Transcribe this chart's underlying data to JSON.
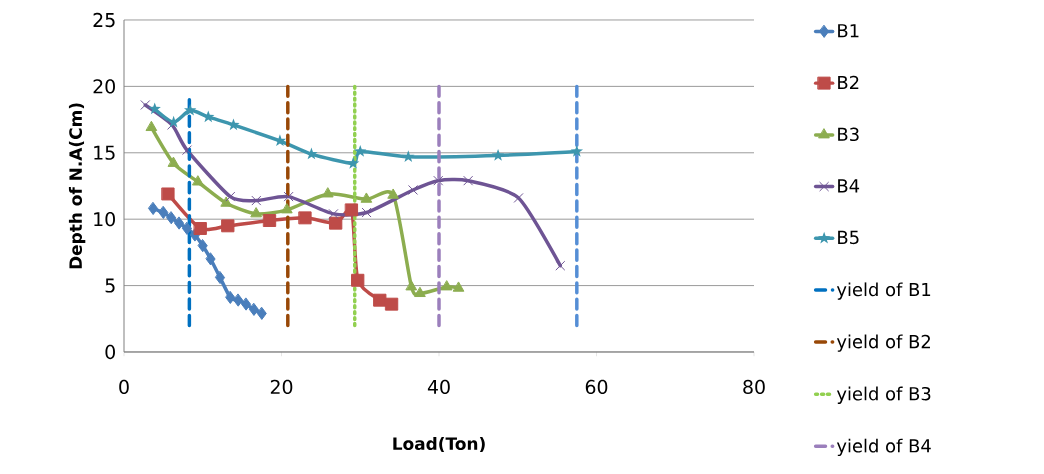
{
  "chart_data": {
    "type": "line",
    "xlabel": "Load(Ton)",
    "ylabel": "Depth of N.A(Cm)",
    "xlim": [
      0,
      80
    ],
    "xticks": [
      0,
      20,
      40,
      60,
      80
    ],
    "ylim": [
      0,
      25
    ],
    "yticks": [
      0,
      5,
      10,
      15,
      20,
      25
    ],
    "grid": "y",
    "legend": "right",
    "series": [
      {
        "name": "B1",
        "color": "#4a7ebb",
        "marker": "diamond",
        "line_style": "solid",
        "x": [
          3.7,
          5,
          6,
          7,
          8,
          9,
          10,
          11,
          12.2,
          13.5,
          14.5,
          15.5,
          16.5,
          17.5
        ],
        "values": [
          10.8,
          10.5,
          10.1,
          9.7,
          9.3,
          8.8,
          8,
          7,
          5.6,
          4.1,
          3.9,
          3.6,
          3.2,
          2.9
        ]
      },
      {
        "name": "B2",
        "color": "#be4b48",
        "marker": "square",
        "line_style": "solid",
        "x": [
          5.6,
          9.7,
          13.2,
          18.5,
          23,
          26.9,
          28.9,
          29.7,
          32.5,
          34
        ],
        "values": [
          11.9,
          9.3,
          9.5,
          9.9,
          10.1,
          9.7,
          10.7,
          5.4,
          3.9,
          3.6
        ]
      },
      {
        "name": "B3",
        "color": "#8cad4f",
        "marker": "triangle",
        "line_style": "solid",
        "x": [
          3.5,
          6.3,
          9.4,
          13,
          16.8,
          20.7,
          25.9,
          30.8,
          34.2,
          36.5,
          37.6,
          41,
          42.5
        ],
        "values": [
          16.9,
          14.2,
          12.8,
          11.2,
          10.4,
          10.7,
          11.9,
          11.5,
          11.8,
          4.9,
          4.4,
          4.9,
          4.8
        ]
      },
      {
        "name": "B4",
        "color": "#6e5494",
        "marker": "cross",
        "line_style": "solid",
        "x": [
          2.7,
          6.1,
          8,
          13.5,
          16.8,
          20.9,
          26.6,
          30.8,
          36.7,
          39.9,
          43.7,
          50.1,
          55.4
        ],
        "values": [
          18.6,
          17.1,
          15.2,
          11.7,
          11.4,
          11.7,
          10.4,
          10.5,
          12.2,
          12.9,
          12.9,
          11.6,
          6.5
        ]
      },
      {
        "name": "B5",
        "color": "#3d96ae",
        "marker": "star",
        "line_style": "solid",
        "x": [
          3.9,
          6.3,
          8.4,
          10.7,
          13.9,
          19.8,
          23.8,
          29.1,
          30,
          36.1,
          47.5,
          57.5
        ],
        "values": [
          18.3,
          17.3,
          18.2,
          17.7,
          17.1,
          15.9,
          14.9,
          14.2,
          15.1,
          14.7,
          14.8,
          15.1
        ]
      },
      {
        "name": "yield of B1",
        "color": "#0070c0",
        "marker": "none",
        "line_style": "dashed",
        "x": [
          8.3,
          8.3
        ],
        "values": [
          2,
          19
        ]
      },
      {
        "name": "yield of B2",
        "color": "#984807",
        "marker": "none",
        "line_style": "dashed",
        "x": [
          20.8,
          20.8
        ],
        "values": [
          2,
          20
        ]
      },
      {
        "name": "yield of B3",
        "color": "#92d050",
        "marker": "none",
        "line_style": "dotted",
        "x": [
          29.3,
          29.3
        ],
        "values": [
          2,
          20
        ]
      },
      {
        "name": "yield of B4",
        "color": "#9b7fbc",
        "marker": "none",
        "line_style": "dashed",
        "x": [
          40,
          40
        ],
        "values": [
          2,
          20
        ]
      },
      {
        "color": "#558ed5",
        "marker": "none",
        "line_style": "dashed",
        "x": [
          57.5,
          57.5
        ],
        "values": [
          2,
          20
        ]
      }
    ]
  }
}
